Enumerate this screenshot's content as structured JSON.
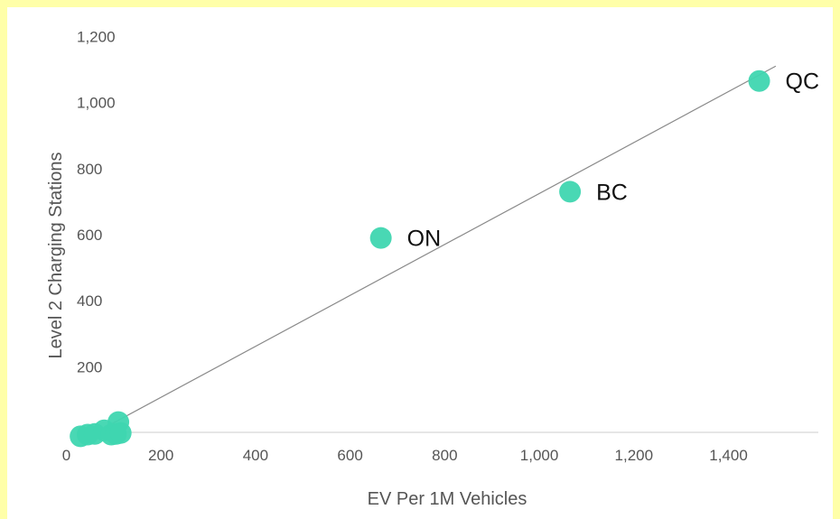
{
  "colors": {
    "background": "#ffffa8",
    "plot_background": "#ffffff",
    "point": "#3fd6b0",
    "trendline": "#8a8a8a",
    "axis": "#cccccc",
    "text": "#555555"
  },
  "chart_data": {
    "type": "scatter",
    "title": "",
    "xlabel": "EV Per 1M Vehicles",
    "ylabel": "Level 2 Charging Stations",
    "xlim": [
      -125,
      1590
    ],
    "ylim": [
      -50,
      1250
    ],
    "x_ticks": [
      "0",
      "200",
      "400",
      "600",
      "800",
      "1,000",
      "1,200",
      "1,400"
    ],
    "y_ticks": [
      "0",
      "200",
      "400",
      "600",
      "800",
      "1,000",
      "1,200"
    ],
    "grid": false,
    "legend": "none",
    "trendline": {
      "from": [
        60,
        0
      ],
      "to": [
        1500,
        1110
      ]
    },
    "points": [
      {
        "x": 30,
        "y": -10,
        "label": ""
      },
      {
        "x": 45,
        "y": -5,
        "label": ""
      },
      {
        "x": 60,
        "y": -3,
        "label": ""
      },
      {
        "x": 80,
        "y": 8,
        "label": ""
      },
      {
        "x": 95,
        "y": -5,
        "label": ""
      },
      {
        "x": 105,
        "y": -3,
        "label": ""
      },
      {
        "x": 110,
        "y": 33,
        "label": ""
      },
      {
        "x": 115,
        "y": 0,
        "label": ""
      },
      {
        "x": 665,
        "y": 590,
        "label": "ON"
      },
      {
        "x": 1065,
        "y": 730,
        "label": "BC"
      },
      {
        "x": 1465,
        "y": 1065,
        "label": "QC"
      }
    ]
  }
}
